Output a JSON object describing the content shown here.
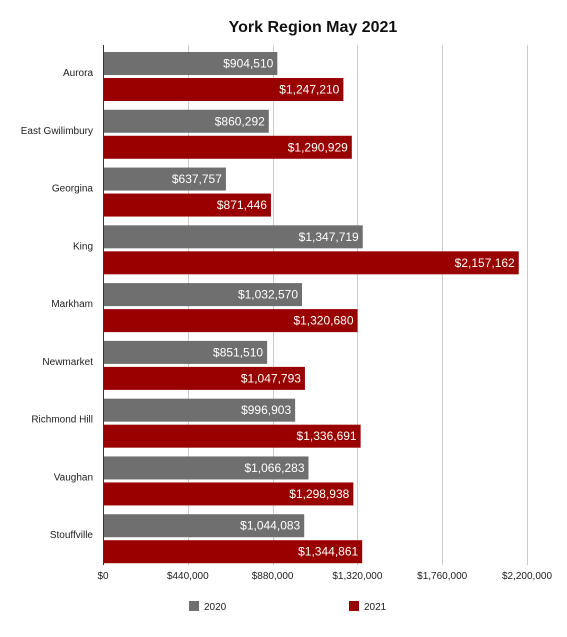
{
  "chart_data": {
    "type": "bar",
    "orientation": "horizontal",
    "title": "York Region May 2021",
    "xlabel": "",
    "ylabel": "",
    "categories": [
      "Aurora",
      "East Gwilimbury",
      "Georgina",
      "King",
      "Markham",
      "Newmarket",
      "Richmond Hill",
      "Vaughan",
      "Stouffville"
    ],
    "series": [
      {
        "name": "2020",
        "color": "#6f6f6f",
        "values": [
          904510,
          860292,
          637757,
          1347719,
          1032570,
          851510,
          996903,
          1066283,
          1044083
        ],
        "labels": [
          "$904,510",
          "$860,292",
          "$637,757",
          "$1,347,719",
          "$1,032,570",
          "$851,510",
          "$996,903",
          "$1,066,283",
          "$1,044,083"
        ]
      },
      {
        "name": "2021",
        "color": "#990000",
        "values": [
          1247210,
          1290929,
          871446,
          2157162,
          1320680,
          1047793,
          1336691,
          1298938,
          1344861
        ],
        "labels": [
          "$1,247,210",
          "$1,290,929",
          "$871,446",
          "$2,157,162",
          "$1,320,680",
          "$1,047,793",
          "$1,336,691",
          "$1,298,938",
          "$1,344,861"
        ]
      }
    ],
    "xlim": [
      0,
      2200000
    ],
    "ticks": [
      0,
      440000,
      880000,
      1320000,
      1760000,
      2200000
    ],
    "tick_labels": [
      "$0",
      "$440,000",
      "$880,000",
      "$1,320,000",
      "$1,760,000",
      "$2,200,000"
    ],
    "grid": true,
    "legend_position": "bottom"
  }
}
